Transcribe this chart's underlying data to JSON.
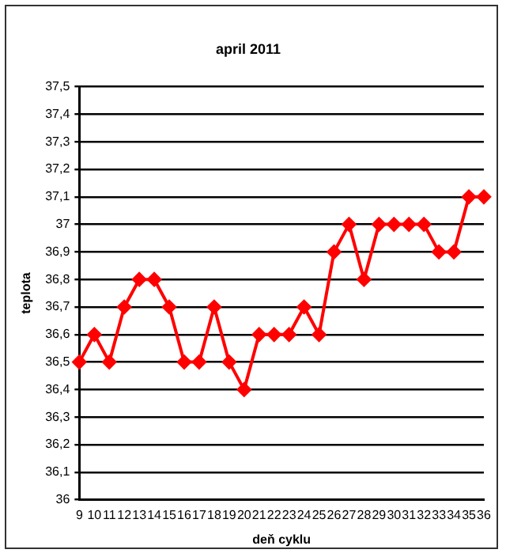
{
  "chart_data": {
    "type": "line",
    "title": "april 2011",
    "xlabel": "deň cyklu",
    "ylabel": "teplota",
    "categories": [
      "9",
      "10",
      "11",
      "12",
      "13",
      "14",
      "15",
      "16",
      "17",
      "18",
      "19",
      "20",
      "21",
      "22",
      "23",
      "24",
      "25",
      "26",
      "27",
      "28",
      "29",
      "30",
      "31",
      "32",
      "33",
      "34",
      "35",
      "36"
    ],
    "series": [
      {
        "color": "#ff0000",
        "values": [
          36.5,
          36.6,
          36.5,
          36.7,
          36.8,
          36.8,
          36.7,
          36.5,
          36.5,
          36.7,
          36.5,
          36.4,
          36.6,
          36.6,
          36.6,
          36.7,
          36.6,
          36.9,
          37.0,
          36.8,
          37.0,
          37.0,
          37.0,
          37.0,
          36.9,
          36.9,
          37.1,
          37.1
        ]
      }
    ],
    "ylim": [
      36,
      37.5
    ],
    "yticks": [
      {
        "value": 36,
        "label": "36"
      },
      {
        "value": 36.1,
        "label": "36,1"
      },
      {
        "value": 36.2,
        "label": "36,2"
      },
      {
        "value": 36.3,
        "label": "36,3"
      },
      {
        "value": 36.4,
        "label": "36,4"
      },
      {
        "value": 36.5,
        "label": "36,5"
      },
      {
        "value": 36.6,
        "label": "36,6"
      },
      {
        "value": 36.7,
        "label": "36,7"
      },
      {
        "value": 36.8,
        "label": "36,8"
      },
      {
        "value": 36.9,
        "label": "36,9"
      },
      {
        "value": 37,
        "label": "37"
      },
      {
        "value": 37.1,
        "label": "37,1"
      },
      {
        "value": 37.2,
        "label": "37,2"
      },
      {
        "value": 37.3,
        "label": "37,3"
      },
      {
        "value": 37.4,
        "label": "37,4"
      },
      {
        "value": 37.5,
        "label": "37,5"
      }
    ],
    "grid": "y",
    "legend": false,
    "marker": "diamond",
    "line_style": "solid"
  }
}
